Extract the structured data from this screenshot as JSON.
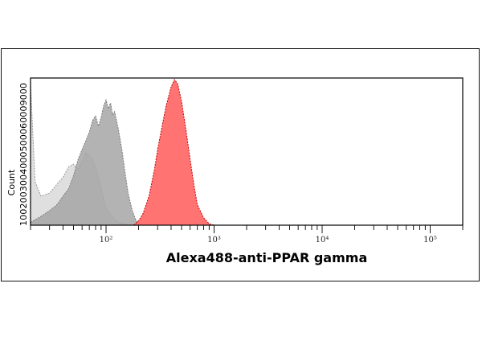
{
  "chart_data": {
    "type": "area",
    "title": "",
    "xlabel": "Alexa488-anti-PPAR gamma",
    "ylabel": "Count",
    "x_scale": "log",
    "xlim": [
      20,
      200000
    ],
    "ylim": [
      0,
      1
    ],
    "x_tick_labels": [
      {
        "value": 100,
        "label": "10²"
      },
      {
        "value": 1000,
        "label": "10³"
      },
      {
        "value": 10000,
        "label": "10⁴"
      },
      {
        "value": 100000,
        "label": "10⁵"
      }
    ],
    "y_tick_labels_overlapping": "1002003004000500060009000",
    "grid": false,
    "legend": "none",
    "series": [
      {
        "color": "#d9d9d9",
        "edge": "#9a9a9a",
        "x": [
          20,
          22,
          25,
          30,
          35,
          40,
          45,
          50,
          55,
          60,
          65,
          70,
          75,
          80,
          85,
          90,
          95,
          100,
          110,
          120,
          130,
          150,
          180,
          200
        ],
        "values": [
          0.98,
          0.3,
          0.2,
          0.22,
          0.28,
          0.33,
          0.4,
          0.42,
          0.38,
          0.44,
          0.5,
          0.48,
          0.45,
          0.4,
          0.33,
          0.25,
          0.18,
          0.12,
          0.07,
          0.04,
          0.02,
          0.01,
          0.0,
          0.0
        ]
      },
      {
        "color": "#a6a6a6",
        "edge": "#7a7a7a",
        "x": [
          20,
          25,
          30,
          35,
          40,
          45,
          50,
          55,
          60,
          65,
          70,
          75,
          80,
          85,
          90,
          95,
          100,
          105,
          110,
          115,
          120,
          130,
          140,
          150,
          160,
          175,
          190,
          210
        ],
        "values": [
          0.02,
          0.06,
          0.1,
          0.14,
          0.2,
          0.25,
          0.34,
          0.45,
          0.52,
          0.58,
          0.64,
          0.72,
          0.75,
          0.68,
          0.74,
          0.82,
          0.86,
          0.8,
          0.84,
          0.76,
          0.78,
          0.66,
          0.52,
          0.36,
          0.22,
          0.1,
          0.03,
          0.0
        ]
      },
      {
        "color": "#ff6b6b",
        "edge": "#c00000",
        "x": [
          180,
          200,
          220,
          250,
          280,
          300,
          330,
          360,
          400,
          430,
          460,
          500,
          550,
          600,
          650,
          700,
          800,
          900,
          1000
        ],
        "values": [
          0.0,
          0.03,
          0.08,
          0.2,
          0.38,
          0.52,
          0.68,
          0.82,
          0.95,
          1.0,
          0.97,
          0.85,
          0.65,
          0.45,
          0.28,
          0.14,
          0.05,
          0.01,
          0.0
        ]
      }
    ]
  }
}
